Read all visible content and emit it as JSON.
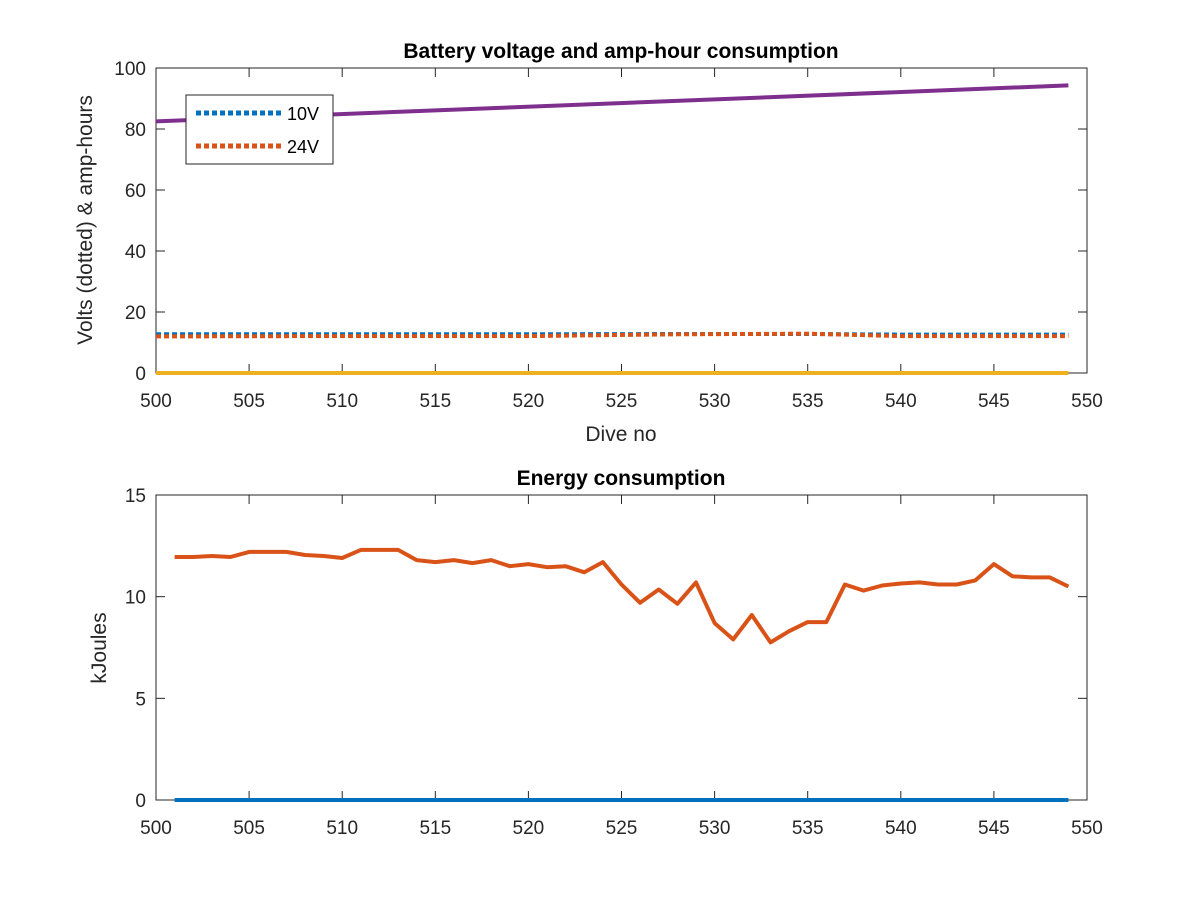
{
  "chart_data": [
    {
      "type": "line",
      "title": "Battery voltage and amp-hour consumption",
      "xlabel": "Dive no",
      "ylabel": "Volts (dotted) & amp-hours",
      "xlim": [
        500,
        550
      ],
      "ylim": [
        0,
        100
      ],
      "xticks": [
        500,
        505,
        510,
        515,
        520,
        525,
        530,
        535,
        540,
        545,
        550
      ],
      "yticks": [
        0,
        20,
        40,
        60,
        80,
        100
      ],
      "legend": {
        "position": "top-left",
        "entries": [
          "10V",
          "24V"
        ]
      },
      "series": [
        {
          "name": "10V",
          "style": "dotted",
          "color": "#0072BD",
          "x": [
            500,
            510,
            520,
            528,
            535,
            540,
            549
          ],
          "y": [
            12.7,
            12.7,
            12.7,
            12.8,
            12.8,
            12.6,
            12.6
          ]
        },
        {
          "name": "24V",
          "style": "dotted",
          "color": "#D95319",
          "x": [
            500,
            510,
            520,
            528,
            535,
            540,
            549
          ],
          "y": [
            12.0,
            12.1,
            12.1,
            12.7,
            12.9,
            12.1,
            12.1
          ]
        },
        {
          "style": "solid",
          "color": "#EDB120",
          "x": [
            500,
            549
          ],
          "y": [
            0,
            0
          ]
        },
        {
          "style": "solid",
          "color": "#7E2F8E",
          "x": [
            500,
            549
          ],
          "y": [
            82.5,
            94.3
          ]
        }
      ]
    },
    {
      "type": "line",
      "title": "Energy consumption",
      "xlabel": "",
      "ylabel": "kJoules",
      "xlim": [
        500,
        550
      ],
      "ylim": [
        0,
        15
      ],
      "xticks": [
        500,
        505,
        510,
        515,
        520,
        525,
        530,
        535,
        540,
        545,
        550
      ],
      "yticks": [
        0,
        5,
        10,
        15
      ],
      "series": [
        {
          "style": "solid",
          "color": "#D95319",
          "x": [
            501,
            502,
            503,
            504,
            505,
            506,
            507,
            508,
            509,
            510,
            511,
            512,
            513,
            514,
            515,
            516,
            517,
            518,
            519,
            520,
            521,
            522,
            523,
            524,
            525,
            526,
            527,
            528,
            529,
            530,
            531,
            532,
            533,
            534,
            535,
            536,
            537,
            538,
            539,
            540,
            541,
            542,
            543,
            544,
            545,
            546,
            547,
            548,
            549
          ],
          "y": [
            11.95,
            11.95,
            12.0,
            11.95,
            12.2,
            12.2,
            12.2,
            12.05,
            12.0,
            11.9,
            12.3,
            12.3,
            12.3,
            11.8,
            11.7,
            11.8,
            11.65,
            11.8,
            11.5,
            11.6,
            11.45,
            11.5,
            11.2,
            11.7,
            10.6,
            9.7,
            10.35,
            9.65,
            10.7,
            8.7,
            7.9,
            9.1,
            7.75,
            8.3,
            8.75,
            8.75,
            10.6,
            10.3,
            10.55,
            10.65,
            10.7,
            10.6,
            10.6,
            10.8,
            11.6,
            11.0,
            10.95,
            10.95,
            10.5
          ]
        },
        {
          "style": "solid",
          "color": "#0072BD",
          "x": [
            501,
            549
          ],
          "y": [
            0,
            0
          ]
        }
      ]
    }
  ]
}
